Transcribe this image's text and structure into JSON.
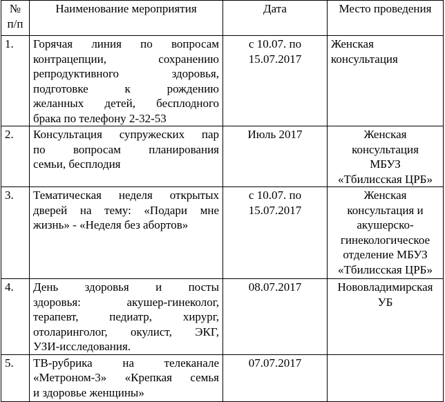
{
  "table": {
    "header": [
      [
        "№",
        "п/п"
      ],
      [
        "Наименование мероприятия"
      ],
      [
        "Дата"
      ],
      [
        "Место проведения"
      ]
    ],
    "rows": [
      [
        [
          "1."
        ],
        [
          "Горячая линия по вопросам",
          "контрацепции, сохранению",
          "репродуктивного здоровья,",
          "подготовке к рождению",
          "желанных детей, бесплодного",
          "брака по телефону 2-32-53"
        ],
        [
          "с 10.07. по",
          "15.07.2017"
        ],
        [
          "Женская",
          "консультация"
        ]
      ],
      [
        [
          "2."
        ],
        [
          "Консультация супружеских пар",
          "по вопросам планирования",
          "семьи, бесплодия"
        ],
        [
          "Июль 2017"
        ],
        [
          "Женская",
          "консультация",
          "МБУЗ",
          "«Тбилисская ЦРБ»"
        ]
      ],
      [
        [
          "3."
        ],
        [
          "Тематическая неделя открытых",
          "дверей на тему: «Подари мне",
          "жизнь» - «Неделя без абортов»"
        ],
        [
          "с 10.07. по",
          "15.07.2017"
        ],
        [
          "Женская",
          "консультация и",
          "акушерско-",
          "гинекологическое",
          "отделение МБУЗ",
          "«Тбилисская ЦРБ»"
        ]
      ],
      [
        [
          "4."
        ],
        [
          "День здоровья и посты",
          "здоровья: акушер-гинеколог,",
          "терапевт, педиатр, хирург,",
          "отоларинголог, окулист, ЭКГ,",
          "УЗИ-исследования."
        ],
        [
          "08.07.2017"
        ],
        [
          "Нововладимирская",
          "УБ"
        ]
      ],
      [
        [
          "5."
        ],
        [
          "ТВ-рубрика на телеканале",
          "«Метроном-3» «Крепкая семья",
          "и здоровье женщины»"
        ],
        [
          "07.07.2017"
        ],
        []
      ]
    ]
  }
}
